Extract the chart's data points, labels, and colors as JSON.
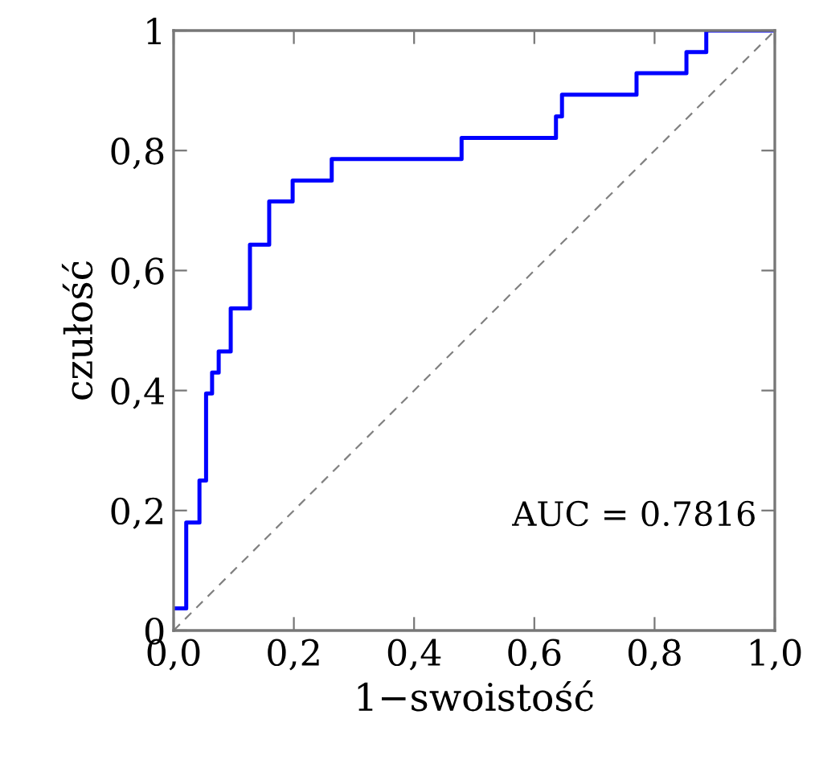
{
  "chart_data": {
    "type": "line",
    "xlabel": "1−swoistość",
    "ylabel": "czułość",
    "xlim": [
      0,
      1
    ],
    "ylim": [
      0,
      1
    ],
    "xticks": [
      {
        "value": 0,
        "label": "0,0"
      },
      {
        "value": 0.2,
        "label": "0,2"
      },
      {
        "value": 0.4,
        "label": "0,4"
      },
      {
        "value": 0.6,
        "label": "0,6"
      },
      {
        "value": 0.8,
        "label": "0,8"
      },
      {
        "value": 1,
        "label": "1,0"
      }
    ],
    "yticks": [
      0,
      {
        "value": 0.2,
        "label": "0,2"
      },
      {
        "value": 0.4,
        "label": "0,4"
      },
      {
        "value": 0.6,
        "label": "0,6"
      },
      {
        "value": 0.8,
        "label": "0,8"
      },
      1
    ],
    "grid": false,
    "legend": false,
    "marker": "none",
    "series": [
      {
        "color": "#0000ff",
        "line_style": "solid",
        "x": [
          0,
          0.021,
          0.021,
          0.043,
          0.043,
          0.054,
          0.054,
          0.064,
          0.064,
          0.075,
          0.075,
          0.095,
          0.095,
          0.127,
          0.127,
          0.159,
          0.159,
          0.198,
          0.198,
          0.263,
          0.263,
          0.479,
          0.479,
          0.636,
          0.636,
          0.646,
          0.646,
          0.77,
          0.77,
          0.853,
          0.853,
          0.886,
          0.886,
          1
        ],
        "values": [
          0.037,
          0.037,
          0.18,
          0.18,
          0.25,
          0.25,
          0.395,
          0.395,
          0.43,
          0.43,
          0.465,
          0.465,
          0.537,
          0.537,
          0.643,
          0.643,
          0.715,
          0.715,
          0.75,
          0.75,
          0.786,
          0.786,
          0.821,
          0.821,
          0.857,
          0.857,
          0.893,
          0.893,
          0.929,
          0.929,
          0.964,
          0.964,
          1,
          1
        ]
      },
      {
        "color": "#808080",
        "line_style": "dashed",
        "x": [
          0,
          1
        ],
        "values": [
          0,
          1
        ]
      }
    ],
    "annotations": [
      "AUC = 0.7816"
    ]
  }
}
